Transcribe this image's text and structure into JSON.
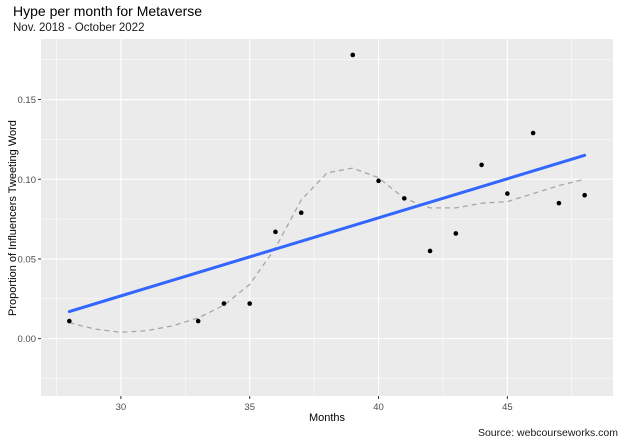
{
  "chart_data": {
    "type": "scatter",
    "title": "Hype per month for Metaverse",
    "subtitle": "Nov. 2018 - October 2022",
    "caption": "Source: webcourseworks.com",
    "xlabel": "Months",
    "ylabel": "Proportion of Influencers Tweeting Word",
    "xlim": [
      26.9,
      49.1
    ],
    "ylim": [
      -0.036,
      0.188
    ],
    "x_ticks": [
      30,
      35,
      40,
      45
    ],
    "y_ticks": [
      0.0,
      0.05,
      0.1,
      0.15
    ],
    "x_tick_labels": [
      "30",
      "35",
      "40",
      "45"
    ],
    "y_tick_labels": [
      "0.00",
      "0.05",
      "0.10",
      "0.15"
    ],
    "grid": true,
    "points": {
      "x": [
        28,
        33,
        34,
        35,
        36,
        37,
        39,
        40,
        41,
        42,
        43,
        44,
        45,
        46,
        47,
        48
      ],
      "y": [
        0.011,
        0.011,
        0.022,
        0.022,
        0.067,
        0.079,
        0.178,
        0.099,
        0.088,
        0.055,
        0.066,
        0.109,
        0.091,
        0.129,
        0.085,
        0.09
      ]
    },
    "linear_fit": {
      "x": [
        28,
        48
      ],
      "y": [
        0.017,
        0.115
      ],
      "color": "#3366ff"
    },
    "smooth_fit": {
      "x": [
        28,
        29,
        30,
        31,
        32,
        33,
        34,
        35,
        36,
        37,
        38,
        39,
        40,
        41,
        42,
        43,
        44,
        45,
        46,
        47,
        48
      ],
      "y": [
        0.01,
        0.006,
        0.004,
        0.005,
        0.008,
        0.013,
        0.021,
        0.034,
        0.057,
        0.087,
        0.104,
        0.107,
        0.101,
        0.088,
        0.082,
        0.082,
        0.085,
        0.086,
        0.091,
        0.096,
        0.1
      ],
      "color": "#a6a6a6"
    },
    "colors": {
      "panel": "#ebebeb",
      "grid_major": "#ffffff",
      "point": "#000000"
    }
  }
}
